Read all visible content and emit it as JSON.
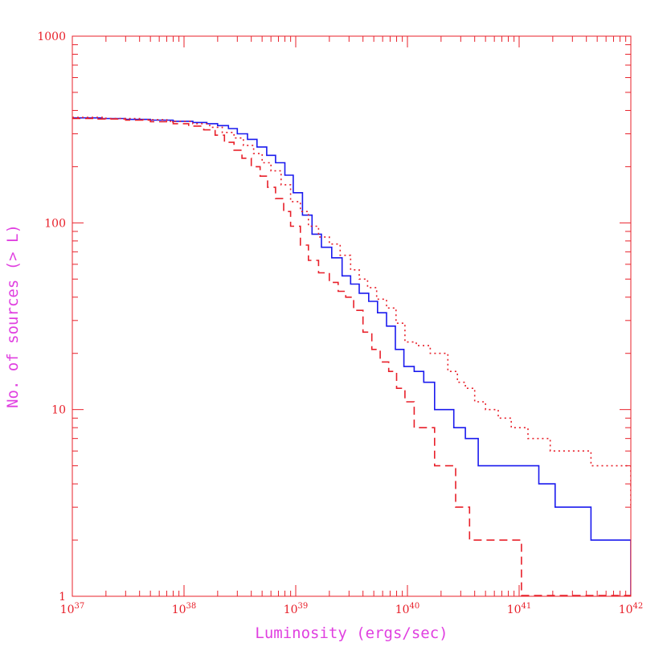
{
  "chart_data": {
    "type": "line",
    "xlabel": "Luminosity (ergs/sec)",
    "ylabel": "No. of sources (> L)",
    "x_scale": "log",
    "y_scale": "log",
    "xlim": [
      1e+37,
      1e+42
    ],
    "ylim": [
      1,
      1000
    ],
    "x_ticks": [
      {
        "base": "10",
        "exp": "37",
        "value": 1e+37
      },
      {
        "base": "10",
        "exp": "38",
        "value": 1e+38
      },
      {
        "base": "10",
        "exp": "39",
        "value": 1e+39
      },
      {
        "base": "10",
        "exp": "40",
        "value": 1e+40
      },
      {
        "base": "10",
        "exp": "41",
        "value": 1e+41
      },
      {
        "base": "10",
        "exp": "42",
        "value": 1e+42
      }
    ],
    "y_ticks": [
      {
        "label": "1",
        "value": 1
      },
      {
        "label": "10",
        "value": 10
      },
      {
        "label": "100",
        "value": 100
      },
      {
        "label": "1000",
        "value": 1000
      }
    ],
    "grid": false,
    "legend": "none",
    "colors": {
      "frame": "#e8202a",
      "axis_title": "#e040e0"
    },
    "series": [
      {
        "style": "solid",
        "color": "#1a1aee",
        "x": [
          1e+37,
          1.8e+37,
          3e+37,
          5e+37,
          8e+37,
          1.2e+38,
          1.6e+38,
          2e+38,
          2.5e+38,
          3e+38,
          3.7e+38,
          4.5e+38,
          5.5e+38,
          6.6e+38,
          8e+38,
          9.5e+38,
          1.15e+39,
          1.4e+39,
          1.7e+39,
          2.1e+39,
          2.6e+39,
          3.1e+39,
          3.7e+39,
          4.5e+39,
          5.4e+39,
          6.5e+39,
          7.8e+39,
          9.3e+39,
          1.15e+40,
          1.4e+40,
          1.75e+40,
          2.6e+40,
          3.3e+40,
          4.3e+40,
          1.1e+41,
          1.5e+41,
          2.1e+41,
          4.4e+41,
          1e+42
        ],
        "y": [
          365,
          362,
          358,
          355,
          350,
          345,
          340,
          332,
          320,
          300,
          280,
          255,
          230,
          210,
          180,
          145,
          110,
          87,
          74,
          65,
          52,
          47,
          42,
          38,
          33,
          28,
          21,
          17,
          16,
          14,
          10,
          8,
          7,
          5,
          5,
          4,
          3,
          2,
          1.01
        ]
      },
      {
        "style": "dotted",
        "color": "#e8202a",
        "x": [
          1e+37,
          2e+37,
          4e+37,
          7e+37,
          1.2e+38,
          1.7e+38,
          2.2e+38,
          2.8e+38,
          3.4e+38,
          4.2e+38,
          5e+38,
          6e+38,
          7.4e+38,
          9e+38,
          1.1e+39,
          1.3e+39,
          1.6e+39,
          2e+39,
          2.5e+39,
          3.1e+39,
          3.7e+39,
          4.4e+39,
          5.3e+39,
          6.5e+39,
          7.9e+39,
          9.5e+39,
          1.2e+40,
          1.6e+40,
          2.3e+40,
          2.8e+40,
          3.3e+40,
          4e+40,
          5e+40,
          6.5e+40,
          8.5e+40,
          1.2e+41,
          1.9e+41,
          2.2e+41,
          4.4e+41,
          1e+42
        ],
        "y": [
          367,
          362,
          357,
          350,
          340,
          325,
          305,
          285,
          260,
          235,
          210,
          190,
          160,
          130,
          115,
          96,
          84,
          77,
          67,
          56,
          50,
          45,
          39,
          35,
          29,
          23,
          22,
          20,
          16,
          14,
          13,
          11,
          10,
          9,
          8,
          7,
          6,
          6,
          5,
          3
        ]
      },
      {
        "style": "dashed",
        "color": "#e8202a",
        "x": [
          1e+37,
          1.7e+37,
          3e+37,
          5e+37,
          8e+37,
          1.1e+38,
          1.5e+38,
          1.9e+38,
          2.3e+38,
          2.8e+38,
          3.3e+38,
          4e+38,
          4.8e+38,
          5.6e+38,
          6.6e+38,
          7.8e+38,
          9e+38,
          1.1e+39,
          1.3e+39,
          1.6e+39,
          2e+39,
          2.4e+39,
          2.8e+39,
          3.3e+39,
          4e+39,
          4.8e+39,
          5.7e+39,
          6.8e+39,
          8e+39,
          9.5e+39,
          1.15e+40,
          1.75e+40,
          2.7e+40,
          3.6e+40,
          6.8e+40,
          1.05e+41,
          1e+42
        ],
        "y": [
          362,
          360,
          355,
          348,
          340,
          330,
          315,
          295,
          270,
          245,
          222,
          200,
          178,
          155,
          135,
          115,
          96,
          76,
          63,
          54,
          48,
          43,
          40,
          34,
          26,
          21,
          18,
          16,
          13,
          11,
          8,
          5,
          3,
          2,
          2,
          1.01,
          1.02
        ]
      }
    ]
  }
}
